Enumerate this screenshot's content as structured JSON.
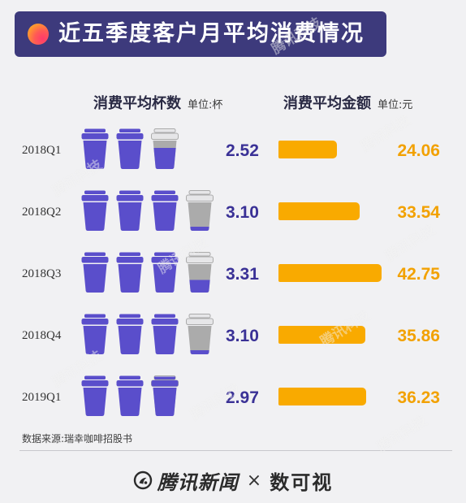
{
  "chart_data": {
    "type": "bar",
    "title": "近五季度客户月平均消费情况",
    "categories": [
      "2018Q1",
      "2018Q2",
      "2018Q3",
      "2018Q4",
      "2019Q1"
    ],
    "series": [
      {
        "name": "消费平均杯数",
        "unit": "单位:杯",
        "values": [
          2.52,
          3.1,
          3.31,
          3.1,
          2.97
        ],
        "color": "#5a4ecb",
        "empty_color": "#ababab",
        "label_color": "#3a3196"
      },
      {
        "name": "消费平均金额",
        "unit": "单位:元",
        "values": [
          24.06,
          33.54,
          42.75,
          35.86,
          36.23
        ],
        "color": "#f9aa00",
        "label_color": "#f2a100"
      }
    ],
    "grid": false
  },
  "header": {
    "accent": "#3d3a7c"
  },
  "footer": {
    "source": "数据来源:瑞幸咖啡招股书",
    "brand_left": "腾讯新闻",
    "separator": "×",
    "brand_right": "数可视"
  },
  "watermark": {
    "text": "腾讯科技"
  },
  "icons": {
    "title_dot": "gradient-dot-icon",
    "cup": "coffee-cup-icon",
    "brand": "tencent-news-logo-icon"
  }
}
